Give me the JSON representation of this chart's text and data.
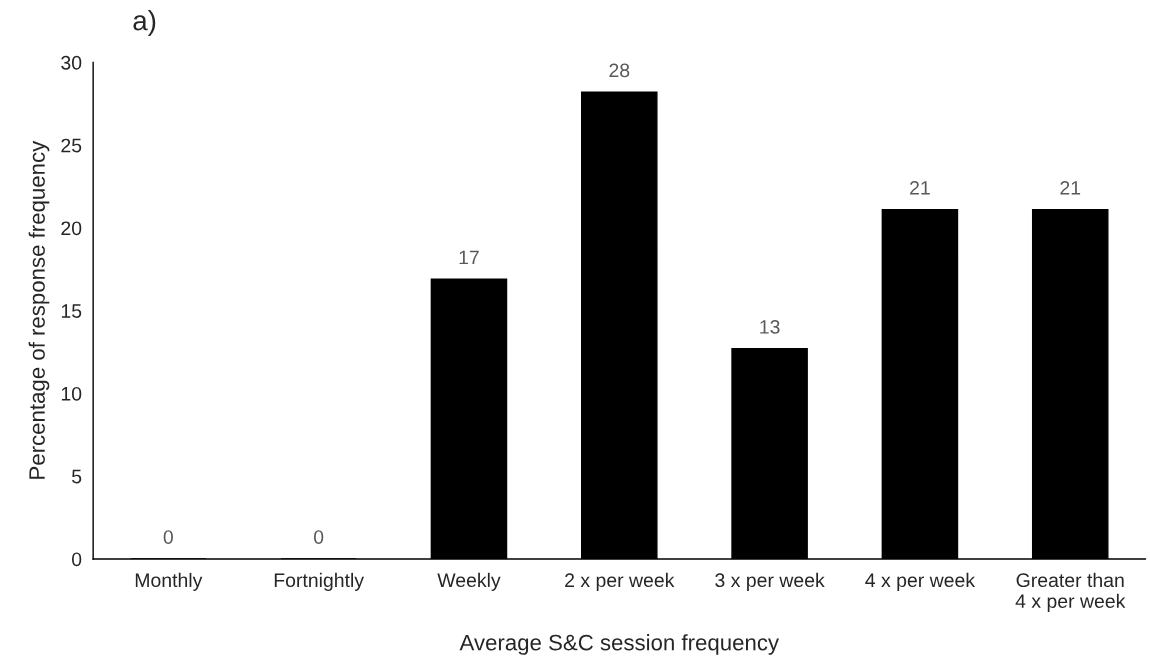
{
  "chart_data": {
    "type": "bar",
    "title": "a)",
    "xlabel": "Average S&C session frequency",
    "ylabel": "Percentage of response frequency",
    "categories": [
      "Monthly",
      "Fortnightly",
      "Weekly",
      "2 x per week",
      "3 x per week",
      "4 x per week",
      "Greater than\n4 x per week"
    ],
    "values": [
      0,
      0,
      16.9,
      28.2,
      12.7,
      21.1,
      21.1
    ],
    "value_labels": [
      "0",
      "0",
      "17",
      "28",
      "13",
      "21",
      "21"
    ],
    "color": "#000000",
    "ylim": [
      0,
      30
    ],
    "yticks": [
      0,
      5,
      10,
      15,
      20,
      25,
      30
    ],
    "grid": false,
    "legend": false
  }
}
